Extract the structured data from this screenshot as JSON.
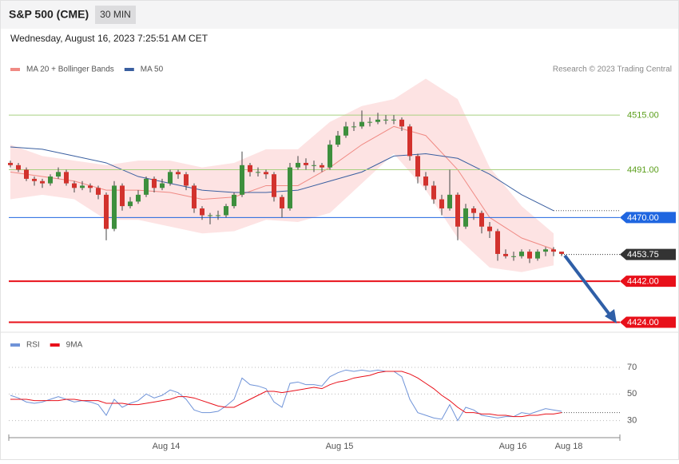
{
  "header": {
    "title": "S&P 500 (CME)",
    "interval": "30 MIN",
    "date": "Wednesday, August 16, 2023 7:25:51 AM CET"
  },
  "chart_data": {
    "type": "candlestick",
    "source": "Research © 2023 Trading Central",
    "xlim": [
      -0.2,
      76.3
    ],
    "ylim": [
      4421,
      4541
    ],
    "xticks": [
      {
        "value": 19.5,
        "label": "Aug 14"
      },
      {
        "value": 41.2,
        "label": "Aug 15"
      },
      {
        "value": 62.9,
        "label": "Aug 16"
      },
      {
        "value": 69.9,
        "label": "Aug 18"
      }
    ],
    "up_color": "#3d8f3d",
    "down_color": "#d2322d",
    "open": [
      4494,
      4493,
      4491,
      4487,
      4486,
      4485,
      4488,
      4490,
      4485,
      4483,
      4484,
      4483,
      4480,
      4465,
      4484,
      4475,
      4477,
      4480,
      4487,
      4483,
      4485,
      4490,
      4489,
      4484,
      4474,
      4471,
      4471,
      4471,
      4475,
      4480,
      4493,
      4490,
      4490,
      4489,
      4479,
      4474,
      4492,
      4494,
      4493,
      4493,
      4492,
      4502,
      4506,
      4510,
      4510,
      4512,
      4512,
      4513,
      4513,
      4513,
      4510,
      4497,
      4488,
      4484,
      4478,
      4474,
      4480,
      4466,
      4474,
      4472,
      4466,
      4464,
      4454,
      4453,
      4453,
      4455,
      4452,
      4455,
      4456,
      4455
    ],
    "high": [
      4495,
      4494,
      4492,
      4488,
      4487,
      4489,
      4492,
      4491,
      4486,
      4486,
      4485,
      4484,
      4481,
      4486,
      4485,
      4479,
      4482,
      4488,
      4488,
      4487,
      4491,
      4491,
      4490,
      4485,
      4475,
      4472,
      4473,
      4476,
      4481,
      4499,
      4494,
      4492,
      4491,
      4490,
      4480,
      4494,
      4497,
      4496,
      4495,
      4494,
      4504,
      4508,
      4512,
      4512,
      4517,
      4514,
      4516,
      4515,
      4515,
      4514,
      4511,
      4498,
      4490,
      4486,
      4480,
      4491,
      4481,
      4476,
      4475,
      4473,
      4468,
      4465,
      4456,
      4455,
      4456,
      4456,
      4456,
      4457,
      4457,
      4455
    ],
    "low": [
      4492,
      4490,
      4486,
      4484,
      4483,
      4484,
      4487,
      4484,
      4481,
      4482,
      4481,
      4478,
      4460,
      4464,
      4473,
      4474,
      4476,
      4479,
      4481,
      4482,
      4484,
      4487,
      4482,
      4472,
      4469,
      4467,
      4469,
      4470,
      4474,
      4479,
      4488,
      4488,
      4487,
      4477,
      4470,
      4473,
      4491,
      4491,
      4490,
      4490,
      4491,
      4501,
      4505,
      4508,
      4509,
      4510,
      4511,
      4511,
      4511,
      4508,
      4495,
      4485,
      4482,
      4476,
      4471,
      4473,
      4460,
      4465,
      4469,
      4463,
      4461,
      4451,
      4452,
      4451,
      4452,
      4450,
      4451,
      4453,
      4453,
      4453
    ],
    "close": [
      4493,
      4491,
      4487,
      4486,
      4485,
      4488,
      4490,
      4485,
      4483,
      4484,
      4483,
      4480,
      4465,
      4484,
      4475,
      4477,
      4480,
      4487,
      4483,
      4485,
      4490,
      4489,
      4484,
      4474,
      4471,
      4471,
      4471,
      4475,
      4480,
      4493,
      4490,
      4490,
      4489,
      4479,
      4474,
      4492,
      4494,
      4493,
      4493,
      4492,
      4502,
      4506,
      4510,
      4510,
      4512,
      4512,
      4513,
      4513,
      4513,
      4510,
      4497,
      4488,
      4484,
      4478,
      4474,
      4480,
      4466,
      4474,
      4472,
      4466,
      4464,
      4454,
      4453,
      4453,
      4455,
      4452,
      4455,
      4456,
      4455,
      4454
    ],
    "ma_x": [
      0,
      4,
      8,
      12,
      16,
      20,
      24,
      28,
      32,
      36,
      40,
      44,
      48,
      52,
      56,
      60,
      64,
      68
    ],
    "series": [
      {
        "name": "MA 20 + Bollinger Bands",
        "color": "#f08a84",
        "band_color": "#fde3e3",
        "values": [
          4490,
          4488,
          4486,
          4482,
          4482,
          4481,
          4478,
          4479,
          4484,
          4484,
          4492,
          4502,
          4510,
          4506,
          4491,
          4470,
          4461,
          4456
        ],
        "upper": [
          4502,
          4497,
          4495,
          4493,
          4495,
          4495,
          4492,
          4494,
          4500,
          4500,
          4512,
          4519,
          4522,
          4531,
          4522,
          4492,
          4475,
          4463
        ],
        "lower": [
          4478,
          4480,
          4478,
          4469,
          4469,
          4466,
          4463,
          4464,
          4469,
          4468,
          4472,
          4485,
          4498,
          4482,
          4461,
          4448,
          4446,
          4449
        ]
      },
      {
        "name": "MA 50",
        "color": "#3a5fa0",
        "values": [
          4501,
          4500,
          4497,
          4494,
          4488,
          4485,
          4482,
          4481,
          4481,
          4482,
          4486,
          4490,
          4497,
          4498,
          4496,
          4489,
          4480,
          4473
        ]
      }
    ],
    "levels": [
      {
        "value": 4515,
        "label": "4515.00",
        "color": "#a8d080",
        "text_color": "#5a9e1a",
        "style": "line"
      },
      {
        "value": 4491,
        "label": "4491.00",
        "color": "#a8d080",
        "text_color": "#5a9e1a",
        "style": "line"
      },
      {
        "value": 4470,
        "label": "4470.00",
        "color": "#1f66e0",
        "text_color": "#ffffff",
        "style": "box"
      },
      {
        "value": 4453.75,
        "label": "4453.75",
        "color": "#333333",
        "text_color": "#ffffff",
        "style": "dotted"
      },
      {
        "value": 4442,
        "label": "4442.00",
        "color": "#e8101a",
        "text_color": "#ffffff",
        "style": "thick"
      },
      {
        "value": 4424,
        "label": "4424.00",
        "color": "#e8101a",
        "text_color": "#ffffff",
        "style": "thick"
      }
    ],
    "rsi": {
      "ylim": [
        19,
        94
      ],
      "yticks": [
        30,
        50,
        70
      ],
      "series": [
        {
          "name": "RSI",
          "color": "#6f93d8",
          "values": [
            49,
            47,
            44,
            43,
            44,
            46,
            48,
            46,
            44,
            45,
            44,
            42,
            34,
            46,
            40,
            43,
            45,
            50,
            47,
            49,
            53,
            51,
            46,
            38,
            36,
            36,
            37,
            41,
            46,
            62,
            57,
            56,
            54,
            44,
            40,
            58,
            59,
            57,
            57,
            56,
            63,
            66,
            68,
            67,
            68,
            67,
            68,
            67,
            67,
            63,
            46,
            36,
            34,
            32,
            31,
            42,
            30,
            40,
            38,
            34,
            33,
            32,
            33,
            33,
            36,
            35,
            37,
            39,
            38,
            37
          ]
        },
        {
          "name": "9MA",
          "color": "#e8101a",
          "values": [
            46,
            46,
            46,
            45,
            45,
            45,
            45,
            46,
            46,
            45,
            45,
            45,
            43,
            43,
            43,
            42,
            42,
            43,
            44,
            45,
            46,
            48,
            48,
            47,
            45,
            43,
            41,
            40,
            40,
            43,
            46,
            49,
            52,
            52,
            51,
            52,
            53,
            54,
            55,
            54,
            57,
            59,
            60,
            62,
            63,
            64,
            66,
            67,
            67,
            67,
            65,
            62,
            58,
            54,
            49,
            45,
            40,
            36,
            36,
            35,
            35,
            34,
            34,
            33,
            33,
            34,
            34,
            35,
            35,
            36
          ]
        }
      ]
    }
  }
}
